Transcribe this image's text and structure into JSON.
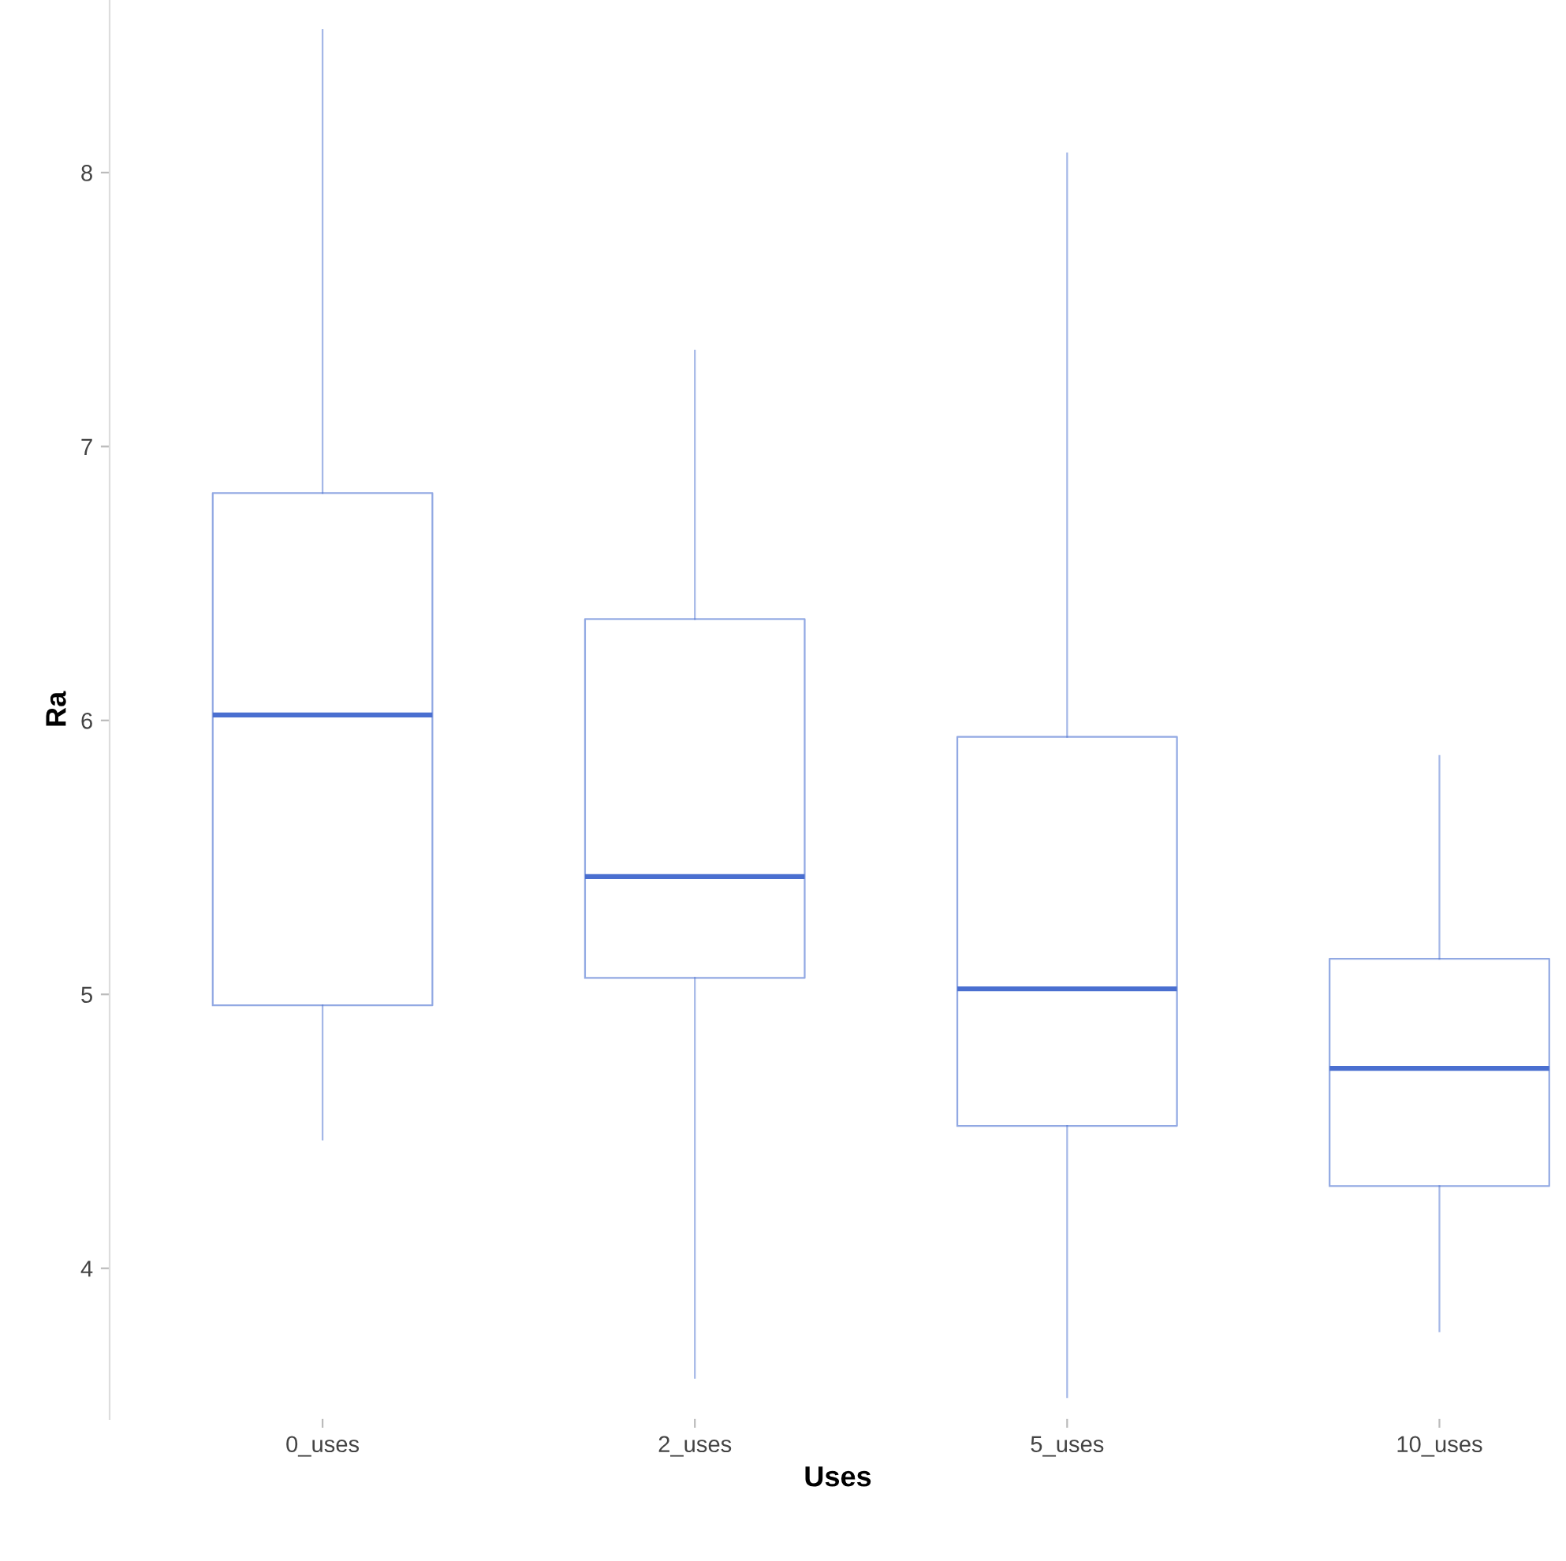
{
  "chart_data": {
    "type": "box",
    "xlabel": "Uses",
    "ylabel": "Ra",
    "categories": [
      "0_uses",
      "2_uses",
      "5_uses",
      "10_uses"
    ],
    "boxes": [
      {
        "low": 4.47,
        "q1": 4.96,
        "median": 6.02,
        "q3": 6.83,
        "high": 8.52
      },
      {
        "low": 3.6,
        "q1": 5.06,
        "median": 5.43,
        "q3": 6.37,
        "high": 7.35
      },
      {
        "low": 3.53,
        "q1": 4.52,
        "median": 5.02,
        "q3": 5.94,
        "high": 8.07
      },
      {
        "low": 3.77,
        "q1": 4.3,
        "median": 4.73,
        "q3": 5.13,
        "high": 5.87
      }
    ],
    "color": "#4a6fd0",
    "ylim": [
      3.45,
      8.63
    ],
    "yticks": [
      4,
      5,
      6,
      7,
      8
    ],
    "grid": false
  }
}
